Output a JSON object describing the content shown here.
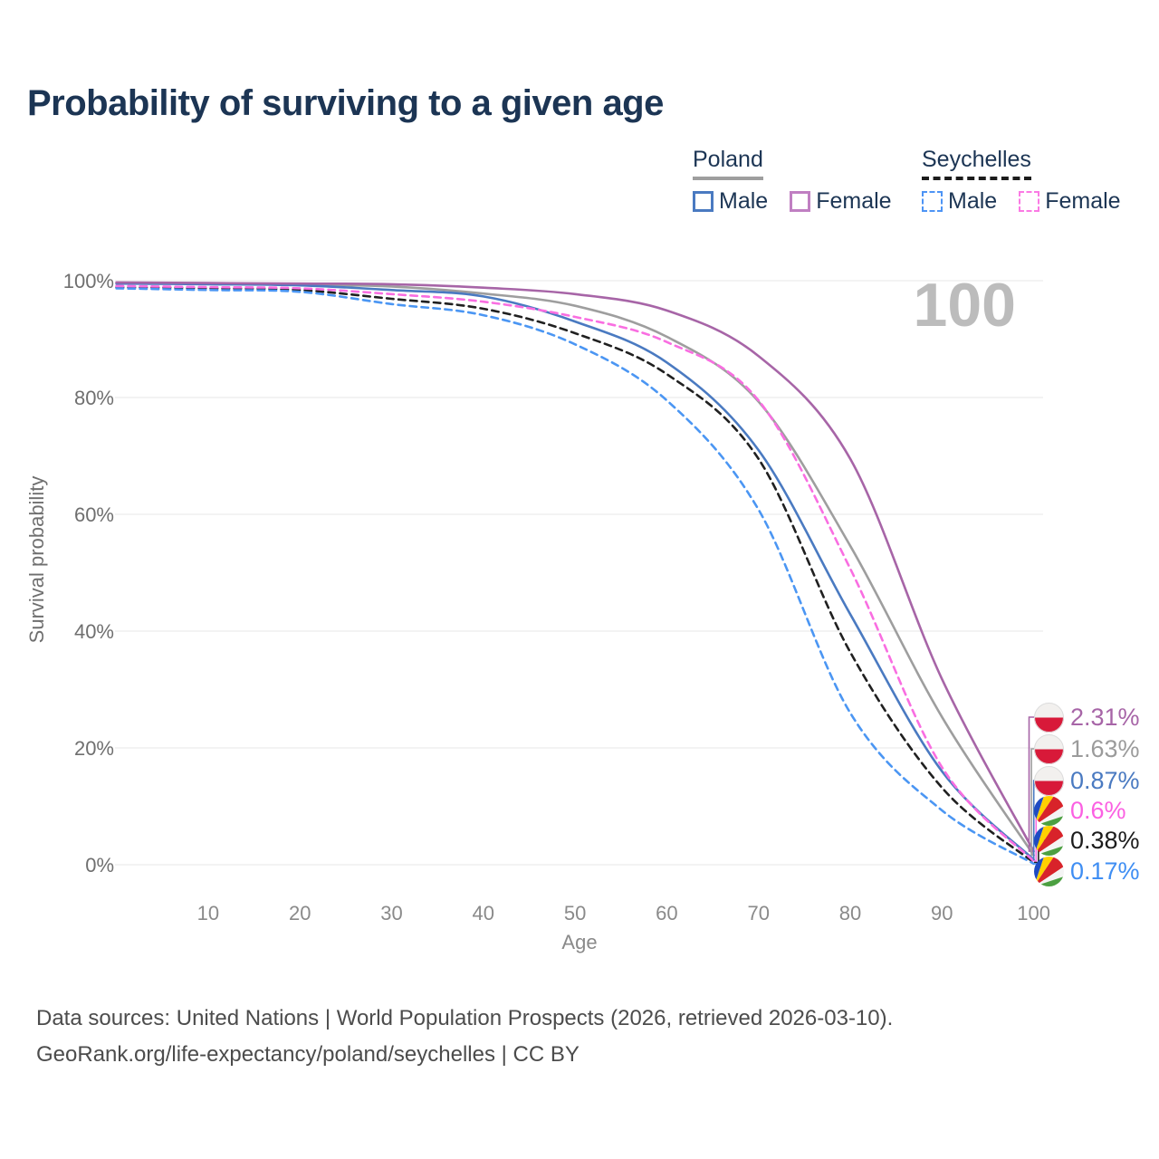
{
  "title": "Probability of surviving to a given age",
  "legend": {
    "groups": [
      {
        "country": "Poland",
        "line_style": "solid",
        "line_color": "#9e9e9e",
        "items": [
          {
            "label": "Male",
            "color": "#4a7ac1",
            "style": "solid"
          },
          {
            "label": "Female",
            "color": "#c07fc2",
            "style": "solid"
          }
        ]
      },
      {
        "country": "Seychelles",
        "line_style": "dashed",
        "line_color": "#1c1c1c",
        "items": [
          {
            "label": "Male",
            "color": "#4d94f5",
            "style": "dashed"
          },
          {
            "label": "Female",
            "color": "#fb7ae4",
            "style": "dashed"
          }
        ]
      }
    ]
  },
  "chart_data": {
    "type": "line",
    "title": "Probability of surviving to a given age",
    "xlabel": "Age",
    "ylabel": "Survival probability",
    "xlim": [
      0,
      100
    ],
    "ylim": [
      0,
      100
    ],
    "grid": "horizontal",
    "legend_position": "top-right",
    "hover_age_label": "100",
    "x_ticks": [
      {
        "label": "10",
        "value": 10
      },
      {
        "label": "20",
        "value": 20
      },
      {
        "label": "30",
        "value": 30
      },
      {
        "label": "40",
        "value": 40
      },
      {
        "label": "50",
        "value": 50
      },
      {
        "label": "60",
        "value": 60
      },
      {
        "label": "70",
        "value": 70
      },
      {
        "label": "80",
        "value": 80
      },
      {
        "label": "90",
        "value": 90
      },
      {
        "label": "100",
        "value": 100
      }
    ],
    "y_ticks": [
      {
        "label": "0%",
        "value": 0
      },
      {
        "label": "20%",
        "value": 20
      },
      {
        "label": "40%",
        "value": 40
      },
      {
        "label": "60%",
        "value": 60
      },
      {
        "label": "80%",
        "value": 80
      },
      {
        "label": "100%",
        "value": 100
      }
    ],
    "x": [
      0,
      10,
      20,
      30,
      40,
      50,
      60,
      70,
      80,
      90,
      100
    ],
    "series": [
      {
        "name": "Poland Female",
        "country": "Poland",
        "style": "solid",
        "color": "#a765a7",
        "values": [
          99.7,
          99.6,
          99.5,
          99.4,
          98.8,
          97.7,
          94.9,
          87.1,
          69.5,
          31.8,
          2.31
        ],
        "value_at_100": "2.31%"
      },
      {
        "name": "Poland",
        "country": "Poland",
        "style": "solid",
        "color": "#9e9e9e",
        "values": [
          99.6,
          99.5,
          99.3,
          99.0,
          97.8,
          95.7,
          90.4,
          79.3,
          54.6,
          25.3,
          1.63
        ],
        "value_at_100": "1.63%"
      },
      {
        "name": "Poland Male",
        "country": "Poland",
        "style": "solid",
        "color": "#4a7ac1",
        "values": [
          99.5,
          99.4,
          99.2,
          98.4,
          97.3,
          93.0,
          86.0,
          71.0,
          42.9,
          16.0,
          0.87
        ],
        "value_at_100": "0.87%"
      },
      {
        "name": "Seychelles Female",
        "country": "Seychelles",
        "style": "dashed",
        "color": "#f96ee1",
        "values": [
          99.1,
          98.9,
          98.7,
          97.7,
          96.4,
          93.8,
          89.5,
          79.5,
          50.7,
          16.7,
          0.6
        ],
        "value_at_100": "0.6%"
      },
      {
        "name": "Seychelles",
        "country": "Seychelles",
        "style": "dashed",
        "color": "#202020",
        "values": [
          98.9,
          98.7,
          98.4,
          96.9,
          95.2,
          91.0,
          84.0,
          69.5,
          36.4,
          13.2,
          0.38
        ],
        "value_at_100": "0.38%"
      },
      {
        "name": "Seychelles Male",
        "country": "Seychelles",
        "style": "dashed",
        "color": "#4b96f3",
        "values": [
          98.7,
          98.4,
          98.1,
          96.0,
          94.1,
          89.1,
          79.5,
          60.8,
          26.0,
          9.3,
          0.17
        ],
        "value_at_100": "0.17%"
      }
    ]
  },
  "end_labels": [
    {
      "series": "Poland Female",
      "flag": "poland",
      "value": "2.31%",
      "color": "#a765a7"
    },
    {
      "series": "Poland",
      "flag": "poland",
      "value": "1.63%",
      "color": "#9b9b9b"
    },
    {
      "series": "Poland Male",
      "flag": "poland",
      "value": "0.87%",
      "color": "#4a7ac1"
    },
    {
      "series": "Seychelles Female",
      "flag": "seychelles",
      "value": "0.6%",
      "color": "#fb60e2"
    },
    {
      "series": "Seychelles",
      "flag": "seychelles",
      "value": "0.38%",
      "color": "#1c1c1c"
    },
    {
      "series": "Seychelles Male",
      "flag": "seychelles",
      "value": "0.17%",
      "color": "#3f8ef3"
    }
  ],
  "footer": {
    "line1": "Data sources: United Nations | World Population Prospects (2026, retrieved 2026-03-10).",
    "line2": "GeoRank.org/life-expectancy/poland/seychelles | CC BY"
  }
}
